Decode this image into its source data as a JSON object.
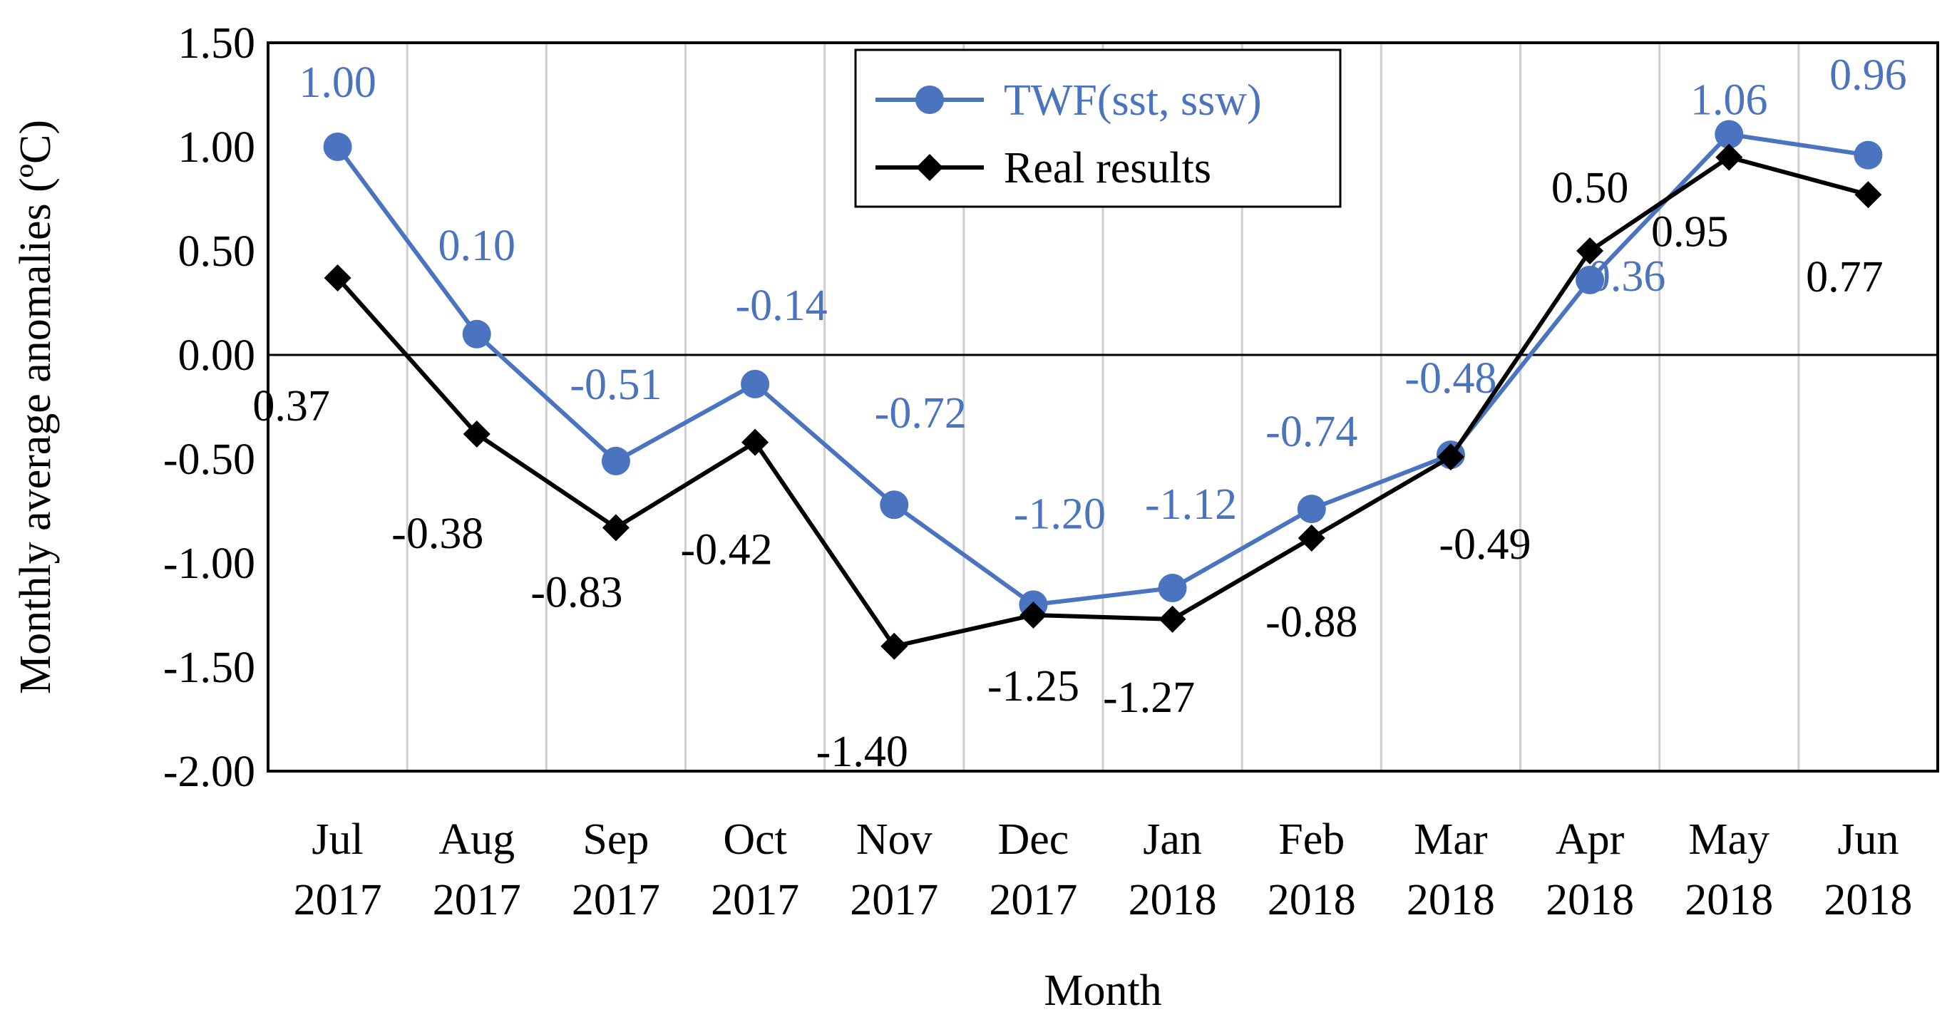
{
  "chart_data": {
    "type": "line",
    "ylabel": "Monthly average anomalies (ºC)",
    "xlabel": "Month",
    "ylim": [
      -2.0,
      1.5
    ],
    "ytick_step": 0.5,
    "yticks": [
      "1.50",
      "1.00",
      "0.50",
      "0.00",
      "-0.50",
      "-1.00",
      "-1.50",
      "-2.00"
    ],
    "categories": [
      [
        "Jul",
        "2017"
      ],
      [
        "Aug",
        "2017"
      ],
      [
        "Sep",
        "2017"
      ],
      [
        "Oct",
        "2017"
      ],
      [
        "Nov",
        "2017"
      ],
      [
        "Dec",
        "2017"
      ],
      [
        "Jan",
        "2018"
      ],
      [
        "Feb",
        "2018"
      ],
      [
        "Mar",
        "2018"
      ],
      [
        "Apr",
        "2018"
      ],
      [
        "May",
        "2018"
      ],
      [
        "Jun",
        "2018"
      ]
    ],
    "grid": "vertical",
    "legend_position": "top-center",
    "series": [
      {
        "name": "TWF(sst, ssw)",
        "color": "#4a73c0",
        "marker": "circle",
        "values": [
          1.0,
          0.1,
          -0.51,
          -0.14,
          -0.72,
          -1.2,
          -1.12,
          -0.74,
          -0.48,
          0.36,
          1.06,
          0.96
        ],
        "labels": [
          "1.00",
          "0.10",
          "-0.51",
          "-0.14",
          "-0.72",
          "-1.20",
          "-1.12",
          "-0.74",
          "-0.48",
          "0.36",
          "1.06",
          "0.96"
        ]
      },
      {
        "name": "Real results",
        "color": "#000000",
        "marker": "diamond",
        "values": [
          0.37,
          -0.38,
          -0.83,
          -0.42,
          -1.4,
          -1.25,
          -1.27,
          -0.88,
          -0.49,
          0.5,
          0.95,
          0.77
        ],
        "labels": [
          "0.37",
          "-0.38",
          "-0.83",
          "-0.42",
          "-1.40",
          "-1.25",
          "-1.27",
          "-0.88",
          "-0.49",
          "0.50",
          "0.95",
          "0.77"
        ]
      }
    ]
  }
}
